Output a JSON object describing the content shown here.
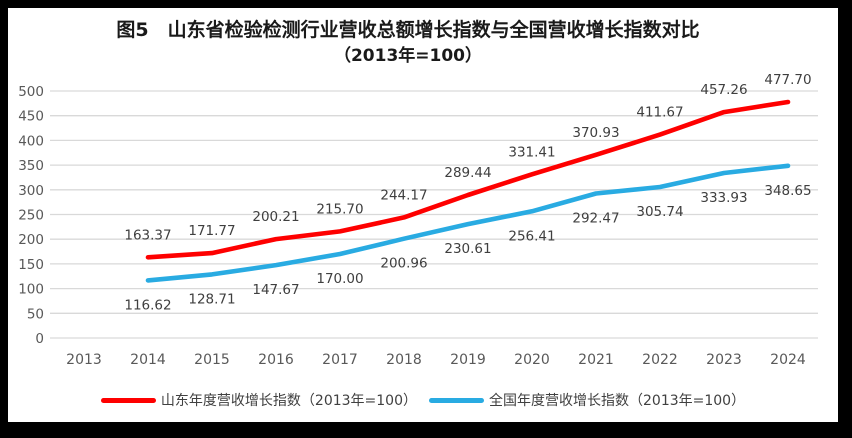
{
  "title": {
    "line1": "图5　山东省检验检测行业营收总额增长指数与全国营收增长指数对比",
    "line2": "（2013年=100）"
  },
  "chart_data": {
    "type": "line",
    "x": [
      2014,
      2015,
      2016,
      2017,
      2018,
      2019,
      2020,
      2021,
      2022,
      2023,
      2024
    ],
    "x_axis_ticks": [
      "2013",
      "2014",
      "2015",
      "2016",
      "2017",
      "2018",
      "2019",
      "2020",
      "2021",
      "2022",
      "2023",
      "2024"
    ],
    "series": [
      {
        "name": "山东年度营收增长指数（2013年=100）",
        "color": "#fe0000",
        "label_position": "above",
        "values": [
          163.37,
          171.77,
          200.21,
          215.7,
          244.17,
          289.44,
          331.41,
          370.93,
          411.67,
          457.26,
          477.7
        ]
      },
      {
        "name": "全国年度营收增长指数（2013年=100）",
        "color": "#29abe2",
        "label_position": "below",
        "values": [
          116.62,
          128.71,
          147.67,
          170.0,
          200.96,
          230.61,
          256.41,
          292.47,
          305.74,
          333.93,
          348.65
        ]
      }
    ],
    "title": "图5 山东省检验检测行业营收总额增长指数与全国营收增长指数对比（2013年=100）",
    "xlabel": "",
    "ylabel": "",
    "ylim": [
      0,
      500
    ],
    "y_tick_step": 50,
    "grid": true,
    "legend_position": "bottom",
    "colors": {
      "gridline": "#d9d9d9",
      "axis_tick_label": "#595959",
      "data_label": "#3f3f3f",
      "frame_border": "#000000",
      "background": "#ffffff"
    }
  }
}
